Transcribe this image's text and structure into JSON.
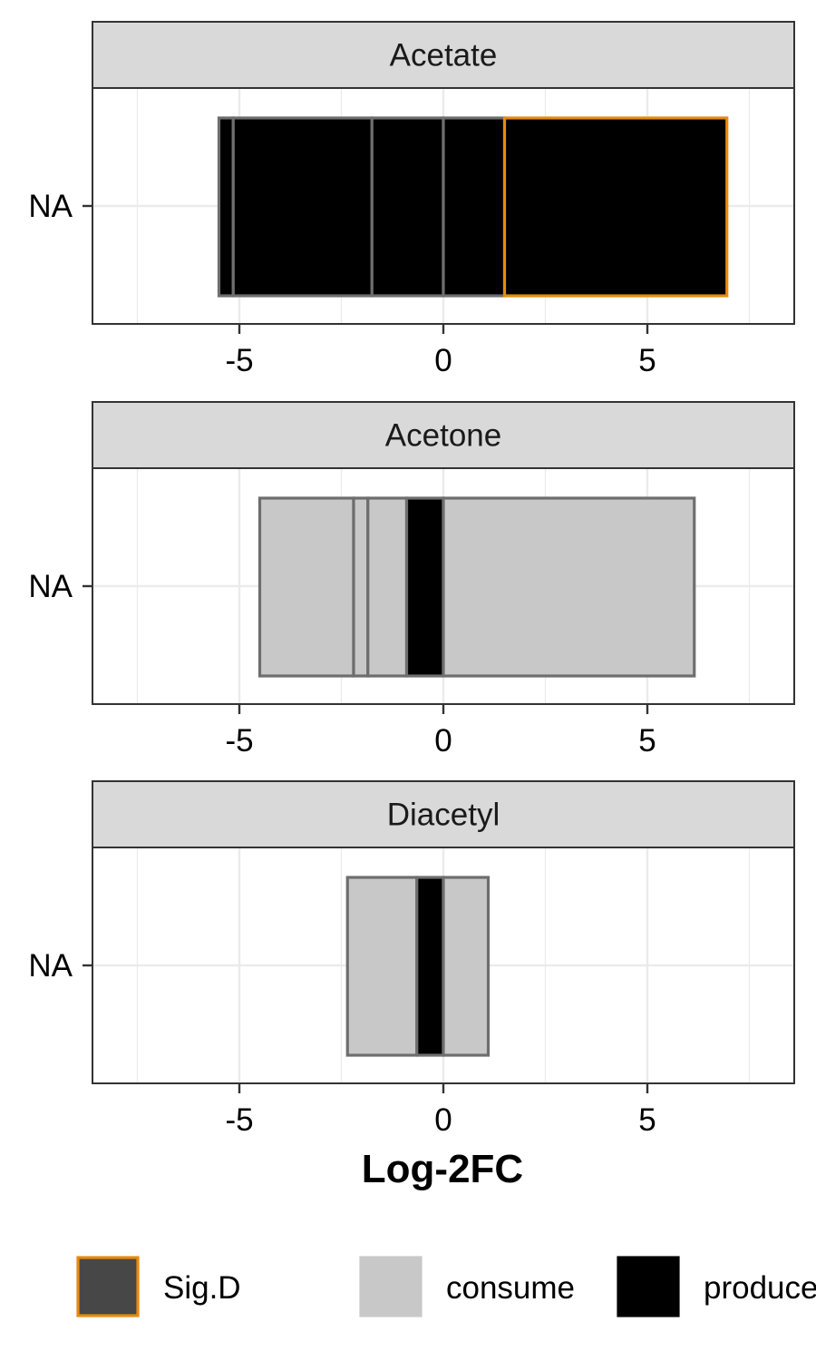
{
  "chart_data": {
    "type": "bar",
    "orientation": "horizontal",
    "stacked": true,
    "xlabel": "Log-2FC",
    "xlim": [
      -8.6,
      8.6
    ],
    "x_ticks": [
      -5,
      0,
      5
    ],
    "x_tick_labels": [
      "-5",
      "0",
      "5"
    ],
    "grid": true,
    "legend_position": "bottom",
    "legend": [
      {
        "key": "sig",
        "label": "Sig.D",
        "fill": "#474747",
        "stroke": "#e88a0e"
      },
      {
        "key": "consume",
        "label": "consume",
        "fill": "#c8c8c8",
        "stroke": "#c8c8c8"
      },
      {
        "key": "produce",
        "label": "produce",
        "fill": "#000000",
        "stroke": "#000000"
      }
    ],
    "segment_styles": {
      "consume": {
        "fill": "#c8c8c8",
        "stroke": "#6e6e6e"
      },
      "produce": {
        "fill": "#000000",
        "stroke": "#6e6e6e"
      },
      "produce_sig": {
        "fill": "#000000",
        "stroke": "#e88a0e"
      }
    },
    "panels": [
      {
        "title": "Acetate",
        "category": "NA",
        "segments": [
          {
            "from": -5.5,
            "to": -5.15,
            "kind": "produce"
          },
          {
            "from": -5.15,
            "to": -1.75,
            "kind": "produce"
          },
          {
            "from": -1.75,
            "to": 0,
            "kind": "produce"
          },
          {
            "from": 0,
            "to": 1.5,
            "kind": "produce"
          },
          {
            "from": 1.5,
            "to": 6.95,
            "kind": "produce_sig"
          }
        ]
      },
      {
        "title": "Acetone",
        "category": "NA",
        "segments": [
          {
            "from": -4.5,
            "to": -2.2,
            "kind": "consume"
          },
          {
            "from": -2.2,
            "to": -1.85,
            "kind": "consume"
          },
          {
            "from": -1.85,
            "to": -0.9,
            "kind": "consume"
          },
          {
            "from": -0.9,
            "to": 0,
            "kind": "produce"
          },
          {
            "from": 0,
            "to": 6.15,
            "kind": "consume"
          }
        ]
      },
      {
        "title": "Diacetyl",
        "category": "NA",
        "segments": [
          {
            "from": -2.35,
            "to": -0.65,
            "kind": "consume"
          },
          {
            "from": -0.65,
            "to": 0,
            "kind": "produce"
          },
          {
            "from": 0,
            "to": 1.1,
            "kind": "consume"
          }
        ]
      }
    ]
  }
}
